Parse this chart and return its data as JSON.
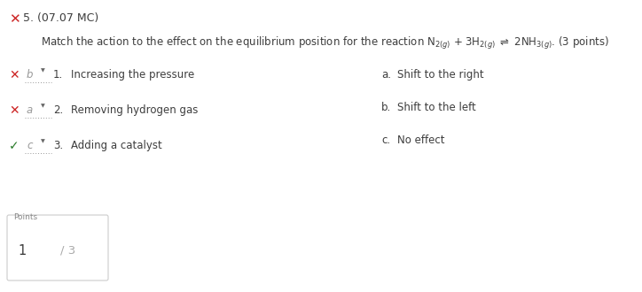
{
  "title_icon": "✕",
  "title_text": " 5. (07.07 MC)",
  "question_text": "Match the action to the effect on the equilibrium position for the reaction N$_{2(g)}$ + 3H$_{2(g)}$ $\\rightleftharpoons$ 2NH$_{3(g)}$. (3 points)",
  "items": [
    {
      "num": "1.",
      "text": "Increasing the pressure",
      "answer": "b",
      "correct": false
    },
    {
      "num": "2.",
      "text": "Removing hydrogen gas",
      "answer": "a",
      "correct": false
    },
    {
      "num": "3.",
      "text": "Adding a catalyst",
      "answer": "c",
      "correct": true
    }
  ],
  "choices": [
    {
      "letter": "a.",
      "text": "Shift to the right"
    },
    {
      "letter": "b.",
      "text": "Shift to the left"
    },
    {
      "letter": "c.",
      "text": "No effect"
    }
  ],
  "points_label": "Points",
  "points_value": "1",
  "points_total": "/ 3",
  "bg_color": "#ffffff",
  "text_color": "#3d3d3d",
  "wrong_color": "#cc2222",
  "correct_color": "#2a7a2a",
  "answer_color": "#999999",
  "border_color": "#cccccc"
}
